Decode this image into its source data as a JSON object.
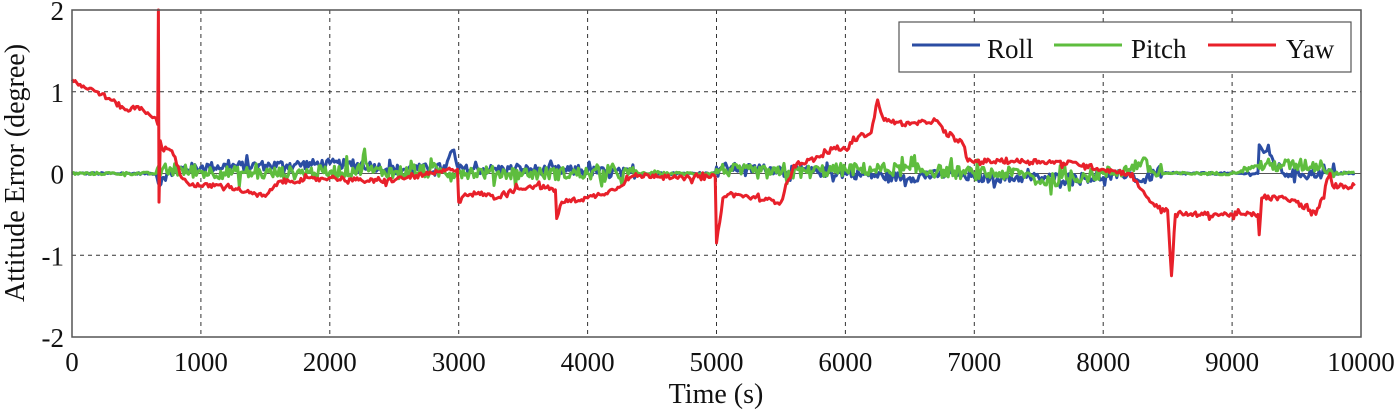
{
  "chart_data": {
    "type": "line",
    "title": "",
    "xlabel": "Time (s)",
    "ylabel": "Attitude Error (degree)",
    "xlim": [
      0,
      10000
    ],
    "ylim": [
      -2,
      2
    ],
    "xticks": [
      0,
      1000,
      2000,
      3000,
      4000,
      5000,
      6000,
      7000,
      8000,
      9000,
      10000
    ],
    "xtick_labels": [
      "0",
      "1000",
      "2000",
      "3000",
      "4000",
      "5000",
      "6000",
      "7000",
      "8000",
      "9000",
      "10000"
    ],
    "yticks": [
      -2,
      -1,
      0,
      1,
      2
    ],
    "ytick_labels": [
      "-2",
      "-1",
      "0",
      "1",
      "2"
    ],
    "grid": true,
    "grid_style": "dashed",
    "legend_position": "upper right",
    "series": [
      {
        "name": "Roll",
        "color": "#2b4da3",
        "x": [
          0,
          650,
          680,
          700,
          800,
          1000,
          1500,
          2000,
          2300,
          2500,
          2900,
          2950,
          3000,
          3500,
          4000,
          4400,
          4990,
          5000,
          5200,
          5500,
          6000,
          6500,
          6800,
          7000,
          7500,
          8000,
          8200,
          8300,
          8400,
          9000,
          9200,
          9210,
          9400,
          9700,
          9800,
          9950
        ],
        "y": [
          0.0,
          0.0,
          -0.15,
          -0.05,
          0.05,
          0.08,
          0.1,
          0.12,
          0.1,
          0.05,
          0.07,
          0.28,
          0.05,
          0.05,
          0.03,
          0.0,
          0.0,
          0.08,
          0.06,
          0.05,
          0.0,
          -0.05,
          0.0,
          -0.05,
          -0.05,
          -0.05,
          0.0,
          -0.1,
          0.0,
          0.0,
          0.0,
          0.35,
          0.0,
          0.0,
          0.0,
          0.0
        ],
        "noise": 0.06
      },
      {
        "name": "Pitch",
        "color": "#5ebd3e",
        "x": [
          0,
          650,
          700,
          1000,
          1500,
          2000,
          2250,
          2270,
          2300,
          2500,
          3000,
          3500,
          4000,
          4400,
          4990,
          5000,
          5500,
          6000,
          6500,
          7000,
          7400,
          7500,
          8000,
          8200,
          8300,
          8400,
          9000,
          9200,
          9400,
          9700,
          9800,
          9950
        ],
        "y": [
          0.0,
          0.0,
          0.05,
          0.02,
          0.0,
          0.02,
          0.05,
          0.3,
          0.03,
          0.02,
          0.02,
          0.0,
          0.0,
          0.0,
          0.0,
          0.05,
          0.0,
          0.05,
          0.05,
          0.0,
          0.0,
          -0.1,
          0.0,
          0.05,
          0.15,
          0.0,
          0.0,
          0.1,
          0.1,
          0.1,
          0.0,
          0.02
        ],
        "noise": 0.08
      },
      {
        "name": "Yaw",
        "color": "#e8202a",
        "x": [
          0,
          100,
          200,
          300,
          400,
          450,
          500,
          550,
          650,
          665,
          670,
          675,
          685,
          700,
          750,
          800,
          850,
          900,
          1000,
          1200,
          1400,
          1500,
          1550,
          1600,
          1800,
          2000,
          2200,
          2400,
          2600,
          2800,
          2950,
          2990,
          3000,
          3050,
          3200,
          3300,
          3400,
          3600,
          3750,
          3760,
          3800,
          4000,
          4200,
          4350,
          4600,
          4700,
          4990,
          5000,
          5050,
          5100,
          5300,
          5500,
          5550,
          5600,
          5800,
          5900,
          6000,
          6100,
          6200,
          6250,
          6300,
          6500,
          6700,
          6800,
          6900,
          6950,
          7200,
          7500,
          7800,
          8000,
          8200,
          8300,
          8400,
          8500,
          8530,
          8560,
          8800,
          9000,
          9200,
          9210,
          9230,
          9400,
          9500,
          9650,
          9700,
          9760,
          9780,
          9950
        ],
        "y": [
          1.15,
          1.05,
          1.0,
          0.9,
          0.8,
          0.77,
          0.82,
          0.78,
          0.68,
          0.6,
          2.0,
          -0.35,
          0.4,
          0.3,
          0.3,
          0.2,
          -0.05,
          -0.12,
          -0.15,
          -0.15,
          -0.25,
          -0.28,
          -0.2,
          -0.1,
          -0.08,
          -0.05,
          -0.08,
          -0.1,
          -0.05,
          0.0,
          0.05,
          0.05,
          -0.35,
          -0.25,
          -0.25,
          -0.3,
          -0.2,
          -0.15,
          -0.2,
          -0.55,
          -0.35,
          -0.3,
          -0.2,
          -0.03,
          -0.02,
          -0.06,
          -0.04,
          -0.85,
          -0.3,
          -0.25,
          -0.3,
          -0.35,
          -0.1,
          0.1,
          0.2,
          0.3,
          0.3,
          0.45,
          0.5,
          0.9,
          0.65,
          0.6,
          0.65,
          0.45,
          0.4,
          0.15,
          0.15,
          0.15,
          0.12,
          0.05,
          0.0,
          -0.2,
          -0.4,
          -0.45,
          -1.25,
          -0.5,
          -0.5,
          -0.5,
          -0.5,
          -0.75,
          -0.3,
          -0.3,
          -0.35,
          -0.5,
          -0.3,
          0.0,
          -0.15,
          -0.15
        ],
        "noise": 0.03
      }
    ]
  },
  "legend": {
    "items": [
      {
        "label": "Roll",
        "color": "#2b4da3"
      },
      {
        "label": "Pitch",
        "color": "#5ebd3e"
      },
      {
        "label": "Yaw",
        "color": "#e8202a"
      }
    ]
  },
  "axes": {
    "xlabel": "Time (s)",
    "ylabel": "Attitude Error (degree)"
  }
}
